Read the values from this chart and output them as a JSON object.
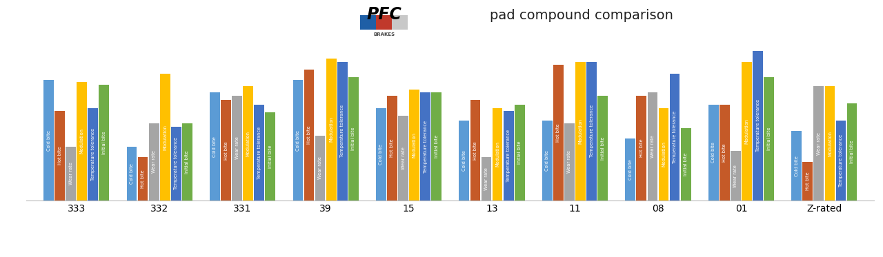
{
  "title": "pad compound comparison",
  "categories": [
    "333",
    "332",
    "331",
    "39",
    "15",
    "13",
    "11",
    "08",
    "01",
    "Z-rated"
  ],
  "bar_data": {
    "333": [
      78,
      58,
      35,
      77,
      60,
      75
    ],
    "332": [
      35,
      28,
      50,
      82,
      48,
      50
    ],
    "331": [
      70,
      65,
      68,
      74,
      62,
      57
    ],
    "39": [
      78,
      85,
      42,
      92,
      90,
      80
    ],
    "15": [
      60,
      68,
      55,
      72,
      70,
      70
    ],
    "13": [
      52,
      65,
      28,
      60,
      58,
      62
    ],
    "11": [
      52,
      88,
      50,
      90,
      90,
      68
    ],
    "08": [
      40,
      68,
      70,
      60,
      82,
      47
    ],
    "01": [
      62,
      62,
      32,
      90,
      97,
      80
    ],
    "Z-rated": [
      45,
      25,
      74,
      74,
      52,
      63
    ]
  },
  "bar_colors": [
    "#5B9BD5",
    "#C55A28",
    "#A5A5A5",
    "#FFC000",
    "#4472C4",
    "#70AD47"
  ],
  "legend_labels": [
    "Cold bite",
    "Hot bite",
    "Wear rate",
    "Modulation",
    "Temperature tolerance",
    "Initial bite"
  ],
  "ylim": [
    0,
    100
  ],
  "yticks": [
    20,
    40,
    60,
    80,
    100
  ],
  "figsize": [
    12.8,
    3.73
  ],
  "dpi": 100,
  "bg_color": "#FFFFFF",
  "grid_color": "#D9D9D9",
  "title_fontsize": 14,
  "xtick_fontsize": 10,
  "legend_fontsize": 9,
  "inner_label_fontsize": 4.8
}
